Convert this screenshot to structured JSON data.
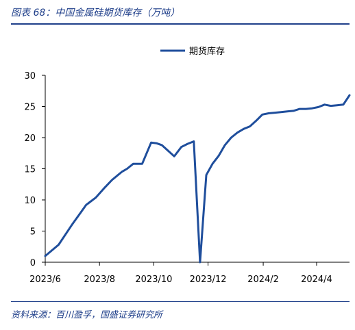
{
  "figure_title": "图表 68：中国金属硅期货库存（万吨）",
  "source_note": "资料来源：百川盈孚，国盛证券研究所",
  "colors": {
    "accent": "#1f3f8a",
    "series": "#1f4e9c"
  },
  "chart_data": {
    "type": "line",
    "title": "",
    "xlabel": "",
    "ylabel": "",
    "ylim": [
      0,
      30
    ],
    "xlim": [
      "2023-06-01",
      "2024-05-08"
    ],
    "y_ticks": [
      "0",
      "5",
      "10",
      "15",
      "20",
      "25",
      "30"
    ],
    "x_ticks": [
      {
        "label": "2023/6",
        "date": "2023-06-01"
      },
      {
        "label": "2023/8",
        "date": "2023-08-01"
      },
      {
        "label": "2023/10",
        "date": "2023-10-01"
      },
      {
        "label": "2023/12",
        "date": "2023-12-01"
      },
      {
        "label": "2024/2",
        "date": "2024-02-01"
      },
      {
        "label": "2024/4",
        "date": "2024-04-01"
      }
    ],
    "grid": false,
    "legend_position": "top-center",
    "series": [
      {
        "name": "期货库存",
        "x": [
          "2023-06-01",
          "2023-06-16",
          "2023-07-01",
          "2023-07-11",
          "2023-07-17",
          "2023-07-28",
          "2023-08-07",
          "2023-08-15",
          "2023-08-26",
          "2023-09-01",
          "2023-09-08",
          "2023-09-13",
          "2023-09-18",
          "2023-09-28",
          "2023-10-04",
          "2023-10-10",
          "2023-10-24",
          "2023-11-01",
          "2023-11-08",
          "2023-11-15",
          "2023-11-22",
          "2023-11-29",
          "2023-12-06",
          "2023-12-13",
          "2023-12-20",
          "2023-12-27",
          "2024-01-03",
          "2024-01-10",
          "2024-01-17",
          "2024-01-24",
          "2024-01-31",
          "2024-02-07",
          "2024-02-21",
          "2024-02-28",
          "2024-03-06",
          "2024-03-13",
          "2024-03-20",
          "2024-03-27",
          "2024-04-03",
          "2024-04-10",
          "2024-04-17",
          "2024-04-24",
          "2024-05-01",
          "2024-05-08"
        ],
        "values": [
          1.0,
          2.8,
          6.0,
          8.0,
          9.2,
          10.4,
          12.0,
          13.2,
          14.5,
          15.0,
          15.8,
          15.8,
          15.8,
          19.2,
          19.1,
          18.8,
          17.0,
          18.5,
          19.0,
          19.4,
          0.0,
          14.0,
          15.8,
          17.1,
          18.8,
          20.0,
          20.8,
          21.4,
          21.8,
          22.7,
          23.7,
          23.9,
          24.1,
          24.2,
          24.3,
          24.6,
          24.6,
          24.7,
          24.9,
          25.3,
          25.1,
          25.2,
          25.3,
          26.8
        ]
      }
    ]
  }
}
